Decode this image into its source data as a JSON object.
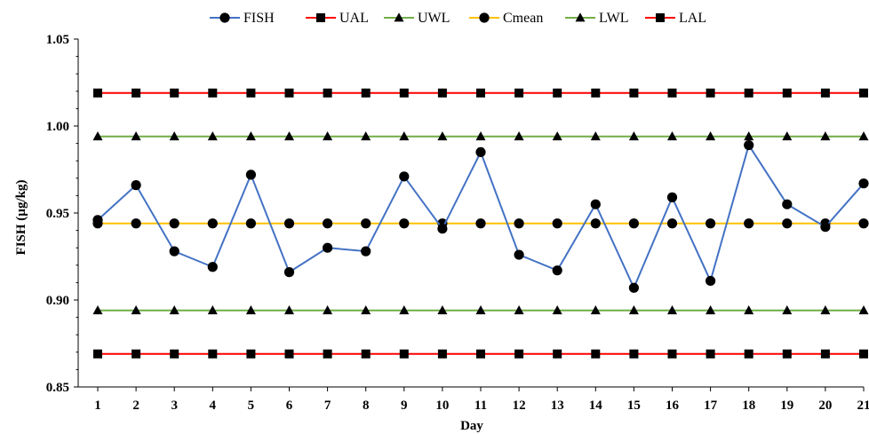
{
  "chart_data": {
    "type": "line",
    "xlabel": "Day",
    "ylabel": "FISH (µg/kg)",
    "xlim": [
      1,
      21
    ],
    "ylim": [
      0.85,
      1.05
    ],
    "x": [
      1,
      2,
      3,
      4,
      5,
      6,
      7,
      8,
      9,
      10,
      11,
      12,
      13,
      14,
      15,
      16,
      17,
      18,
      19,
      20,
      21
    ],
    "y_ticks": [
      "0.85",
      "0.90",
      "0.95",
      "1.00",
      "1.05"
    ],
    "y_tick_values": [
      0.85,
      0.9,
      0.95,
      1.0,
      1.05
    ],
    "grid": false,
    "legend_position": "top",
    "series": [
      {
        "name": "FISH",
        "color": "#4472C4",
        "marker": "circle",
        "values": [
          0.946,
          0.966,
          0.928,
          0.919,
          0.972,
          0.916,
          0.93,
          0.928,
          0.971,
          0.941,
          0.985,
          0.926,
          0.917,
          0.955,
          0.907,
          0.959,
          0.911,
          0.989,
          0.955,
          0.942,
          0.967
        ]
      },
      {
        "name": "UAL",
        "color": "#FF0000",
        "marker": "square",
        "values": [
          1.019,
          1.019,
          1.019,
          1.019,
          1.019,
          1.019,
          1.019,
          1.019,
          1.019,
          1.019,
          1.019,
          1.019,
          1.019,
          1.019,
          1.019,
          1.019,
          1.019,
          1.019,
          1.019,
          1.019,
          1.019
        ]
      },
      {
        "name": "UWL",
        "color": "#70AD47",
        "marker": "triangle",
        "values": [
          0.994,
          0.994,
          0.994,
          0.994,
          0.994,
          0.994,
          0.994,
          0.994,
          0.994,
          0.994,
          0.994,
          0.994,
          0.994,
          0.994,
          0.994,
          0.994,
          0.994,
          0.994,
          0.994,
          0.994,
          0.994
        ]
      },
      {
        "name": "Cmean",
        "color": "#FFC000",
        "marker": "circle",
        "values": [
          0.944,
          0.944,
          0.944,
          0.944,
          0.944,
          0.944,
          0.944,
          0.944,
          0.944,
          0.944,
          0.944,
          0.944,
          0.944,
          0.944,
          0.944,
          0.944,
          0.944,
          0.944,
          0.944,
          0.944,
          0.944
        ]
      },
      {
        "name": "LWL",
        "color": "#70AD47",
        "marker": "triangle",
        "values": [
          0.894,
          0.894,
          0.894,
          0.894,
          0.894,
          0.894,
          0.894,
          0.894,
          0.894,
          0.894,
          0.894,
          0.894,
          0.894,
          0.894,
          0.894,
          0.894,
          0.894,
          0.894,
          0.894,
          0.894,
          0.894
        ]
      },
      {
        "name": "LAL",
        "color": "#FF0000",
        "marker": "square",
        "values": [
          0.869,
          0.869,
          0.869,
          0.869,
          0.869,
          0.869,
          0.869,
          0.869,
          0.869,
          0.869,
          0.869,
          0.869,
          0.869,
          0.869,
          0.869,
          0.869,
          0.869,
          0.869,
          0.869,
          0.869,
          0.869
        ]
      }
    ]
  }
}
